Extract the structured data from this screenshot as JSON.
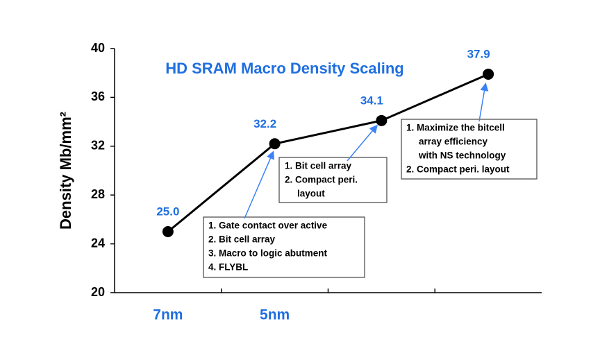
{
  "chart_data": {
    "type": "line",
    "title": "HD SRAM Macro Density Scaling",
    "y_label": "Density Mb/mm²",
    "categories": [
      "7nm",
      "5nm",
      null,
      null
    ],
    "values": [
      25.0,
      32.2,
      34.1,
      37.9
    ],
    "value_labels": [
      "25.0",
      "32.2",
      "34.1",
      "37.9"
    ],
    "color": "#000000",
    "label_color": "#1f6fe0",
    "ylim": [
      20,
      40
    ],
    "yticks": [
      20,
      24,
      28,
      32,
      36,
      40
    ],
    "grid": false,
    "annotations": [
      {
        "lines": [
          "1. Gate contact over active",
          "2. Bit cell array",
          "3. Macro to logic abutment",
          "4. FLYBL"
        ]
      },
      {
        "lines": [
          "1. Bit cell array",
          "2. Compact peri.",
          "layout"
        ]
      },
      {
        "lines": [
          "1. Maximize the bitcell",
          "array efficiency",
          "with NS technology",
          "2. Compact peri. layout"
        ]
      }
    ]
  }
}
